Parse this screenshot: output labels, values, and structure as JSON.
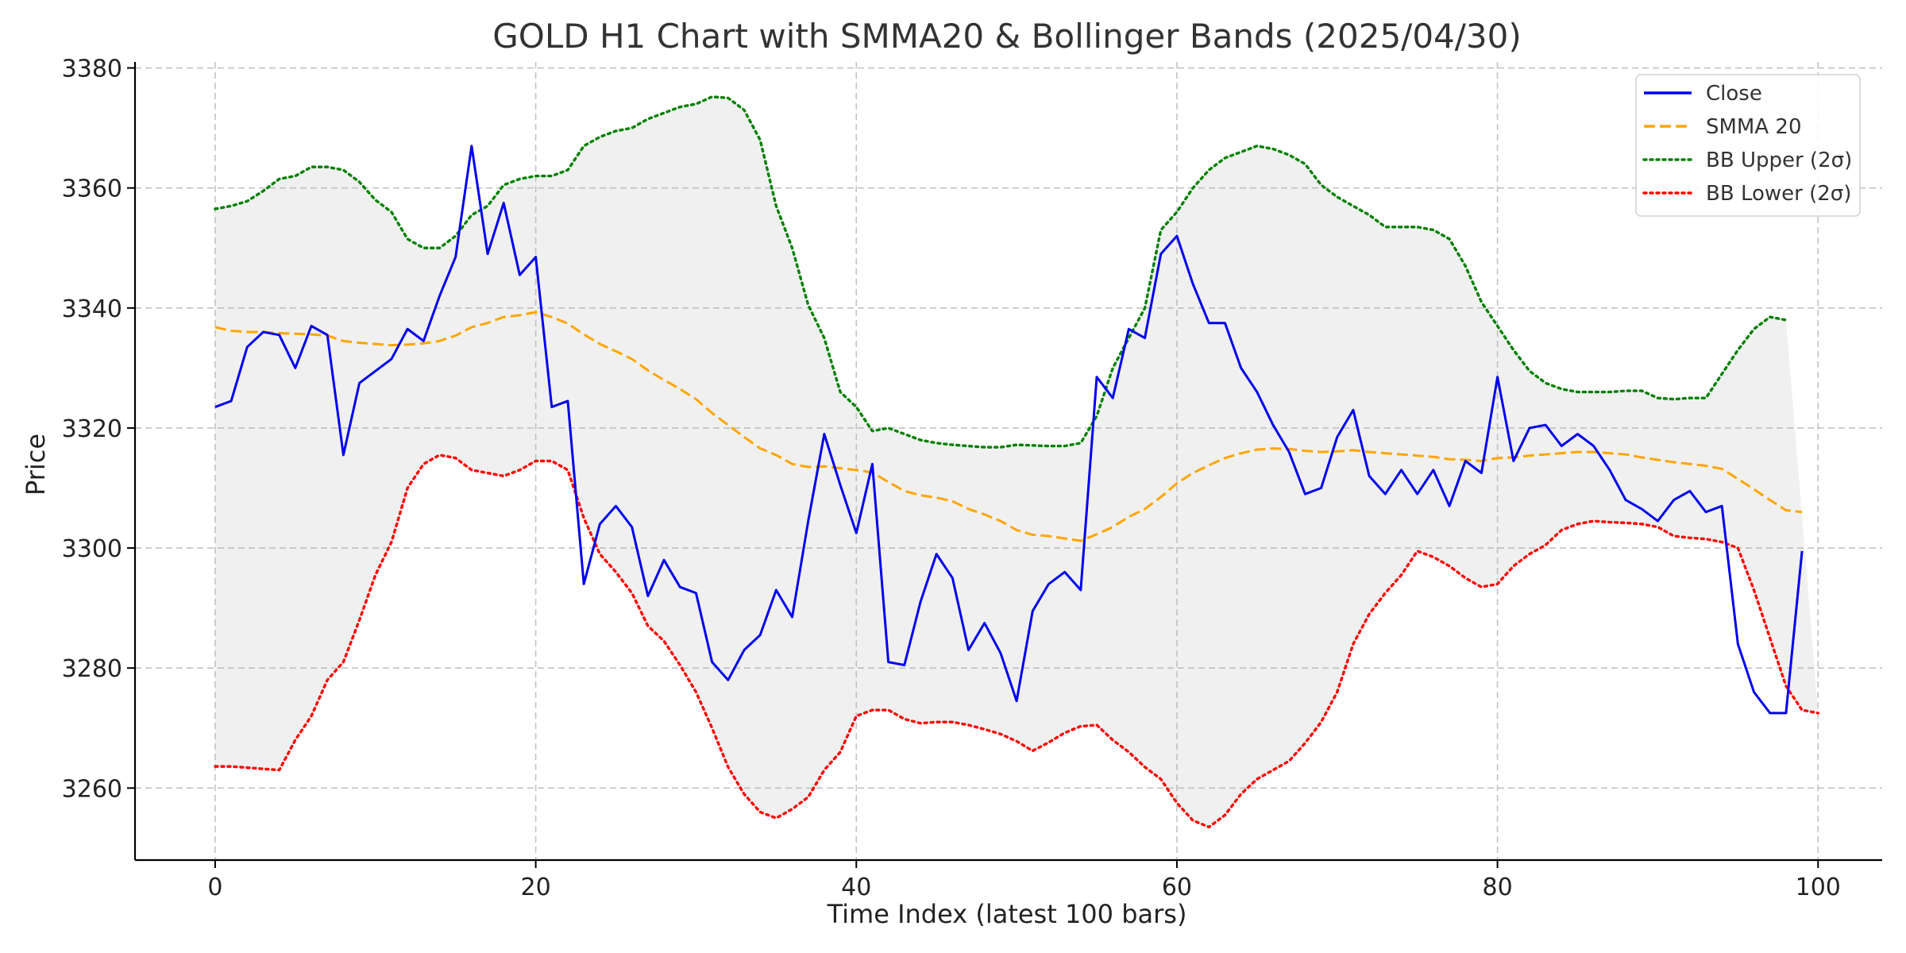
{
  "chart_data": {
    "type": "line",
    "title": "GOLD H1 Chart with SMMA20 & Bollinger Bands (2025/04/30)",
    "xlabel": "Time Index (latest 100 bars)",
    "ylabel": "Price",
    "xlim": [
      -5,
      104
    ],
    "ylim": [
      3248,
      3381
    ],
    "xticks": [
      0,
      20,
      40,
      60,
      80,
      100
    ],
    "yticks": [
      3260,
      3280,
      3300,
      3320,
      3340,
      3360,
      3380
    ],
    "grid": true,
    "legend_position": "top-right",
    "band_fill": {
      "between": [
        "BB Upper (2σ)",
        "BB Lower (2σ)"
      ],
      "color": "#f0f0f0"
    },
    "series": [
      {
        "name": "Close",
        "color": "#0000ee",
        "style": "solid",
        "values": [
          3323.5,
          3324.5,
          3333.5,
          3336,
          3335.5,
          3330,
          3337,
          3335.5,
          3315.5,
          3327.5,
          3329.5,
          3331.5,
          3336.5,
          3334.5,
          3342,
          3348.5,
          3367,
          3349,
          3357.5,
          3345.5,
          3348.5,
          3323.5,
          3324.5,
          3294,
          3304,
          3307,
          3303.5,
          3292,
          3298,
          3293.5,
          3292.5,
          3281,
          3278,
          3283,
          3285.5,
          3293,
          3288.5,
          3304.5,
          3319,
          3310.5,
          3302.5,
          3314,
          3281,
          3280.5,
          3291,
          3299,
          3295,
          3283,
          3287.5,
          3282.5,
          3274.5,
          3289.5,
          3294,
          3296,
          3293,
          3328.5,
          3325,
          3336.5,
          3335,
          3349,
          3352,
          3344,
          3337.5,
          3337.5,
          3330,
          3326,
          3320.5,
          3316,
          3309,
          3310,
          3318.5,
          3323,
          3312,
          3309,
          3313,
          3309,
          3313,
          3307,
          3314.5,
          3312.5,
          3328.5,
          3314.5,
          3320,
          3320.5,
          3317,
          3319,
          3317,
          3313,
          3308,
          3306.5,
          3304.5,
          3308,
          3309.5,
          3306,
          3307,
          3284,
          3276,
          3272.5,
          3272.5,
          3299.5
        ]
      },
      {
        "name": "SMMA 20",
        "color": "#ffa500",
        "style": "dashed",
        "values": [
          3336.8,
          3336.2,
          3336,
          3336,
          3335.8,
          3335.7,
          3335.6,
          3335.4,
          3334.5,
          3334.2,
          3334,
          3333.8,
          3333.9,
          3334.1,
          3334.5,
          3335.4,
          3336.8,
          3337.5,
          3338.5,
          3338.8,
          3339.3,
          3338.5,
          3337.4,
          3335.6,
          3334,
          3332.8,
          3331.5,
          3329.6,
          3328,
          3326.5,
          3324.8,
          3322.5,
          3320.5,
          3318.5,
          3316.6,
          3315.5,
          3314,
          3313.5,
          3313.6,
          3313.3,
          3313,
          3312.6,
          3311,
          3309.5,
          3308.8,
          3308.4,
          3307.8,
          3306.5,
          3305.6,
          3304.5,
          3303,
          3302.2,
          3302,
          3301.6,
          3301.2,
          3302.3,
          3303.5,
          3305.2,
          3306.5,
          3308.5,
          3310.8,
          3312.5,
          3313.8,
          3315,
          3315.8,
          3316.4,
          3316.6,
          3316.5,
          3316.2,
          3316,
          3316.1,
          3316.3,
          3316,
          3315.8,
          3315.6,
          3315.4,
          3315.2,
          3314.8,
          3314.7,
          3314.5,
          3315,
          3315.1,
          3315.4,
          3315.6,
          3315.8,
          3316,
          3316,
          3315.8,
          3315.6,
          3315.1,
          3314.7,
          3314.3,
          3314,
          3313.7,
          3313.2,
          3311.5,
          3309.8,
          3308,
          3306.3,
          3306
        ]
      },
      {
        "name": "BB Upper (2σ)",
        "color": "#008000",
        "style": "dotted",
        "values": [
          3356.5,
          3357,
          3357.8,
          3359.5,
          3361.5,
          3362,
          3363.5,
          3363.5,
          3363,
          3361,
          3358,
          3356,
          3351.5,
          3350,
          3350,
          3352,
          3355.5,
          3357,
          3360.5,
          3361.5,
          3362,
          3362,
          3363,
          3367,
          3368.5,
          3369.5,
          3370,
          3371.5,
          3372.5,
          3373.5,
          3374,
          3375.2,
          3375,
          3373,
          3368,
          3357,
          3350,
          3340.5,
          3335,
          3326,
          3323.5,
          3319.5,
          3320,
          3319,
          3318,
          3317.5,
          3317.2,
          3317,
          3316.8,
          3316.8,
          3317.2,
          3317.1,
          3317,
          3317,
          3317.5,
          3322,
          3330,
          3335,
          3340,
          3353,
          3356,
          3360,
          3363,
          3365,
          3366,
          3367,
          3366.5,
          3365.5,
          3364,
          3360.5,
          3358.5,
          3357,
          3355.5,
          3353.5,
          3353.5,
          3353.5,
          3353,
          3351.5,
          3347,
          3341,
          3337,
          3333,
          3329.5,
          3327.5,
          3326.5,
          3326,
          3326,
          3326,
          3326.2,
          3326.2,
          3325,
          3324.8,
          3325,
          3325,
          3329,
          3333,
          3336.5,
          3338.5,
          3338
        ]
      },
      {
        "name": "BB Lower (2σ)",
        "color": "#ff0000",
        "style": "dotted",
        "values": [
          3263.6,
          3263.6,
          3263.4,
          3263.2,
          3263,
          3268,
          3272,
          3278,
          3281,
          3288,
          3295.5,
          3301,
          3310,
          3314,
          3315.5,
          3315,
          3313,
          3312.5,
          3312,
          3313,
          3314.5,
          3314.5,
          3313,
          3305,
          3299,
          3296,
          3292.5,
          3287,
          3284.5,
          3280.5,
          3276,
          3270,
          3263.5,
          3259,
          3256,
          3255,
          3256.5,
          3258.5,
          3263,
          3266,
          3272,
          3273,
          3273,
          3271.5,
          3270.8,
          3271,
          3271,
          3270.5,
          3269.8,
          3269,
          3267.8,
          3266.2,
          3267.6,
          3269.2,
          3270.3,
          3270.5,
          3268,
          3266,
          3263.5,
          3261.5,
          3257.5,
          3254.6,
          3253.5,
          3255.5,
          3259,
          3261.5,
          3263,
          3264.5,
          3267.5,
          3271,
          3276,
          3284,
          3289,
          3292.5,
          3295.5,
          3299.5,
          3298.5,
          3297,
          3295,
          3293.5,
          3294,
          3297,
          3299,
          3300.5,
          3303,
          3304,
          3304.5,
          3304.3,
          3304.2,
          3304,
          3303.5,
          3302,
          3301.7,
          3301.5,
          3301,
          3300,
          3293,
          3285,
          3277,
          3273,
          3272.5
        ]
      }
    ]
  }
}
